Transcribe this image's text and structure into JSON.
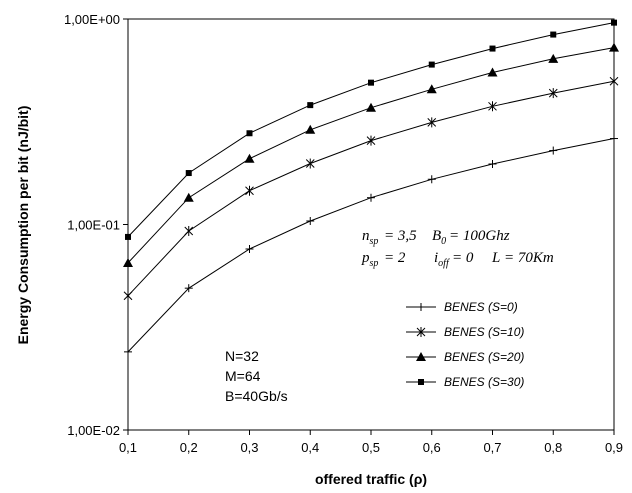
{
  "chart_data": {
    "type": "line",
    "xlabel": "offered traffic (ρ)",
    "ylabel": "Energy Consumption per bit (nJ/bit)",
    "y_scale": "log",
    "ylim": [
      0.01,
      1
    ],
    "xlim": [
      0.1,
      0.9
    ],
    "grid": false,
    "legend_position": "bottom-right",
    "x_ticks": [
      "0,1",
      "0,2",
      "0,3",
      "0,4",
      "0,5",
      "0,6",
      "0,7",
      "0,8",
      "0,9"
    ],
    "y_ticks": [
      "1,00E-02",
      "1,00E-01",
      "1,00E+00"
    ],
    "x": [
      0.1,
      0.2,
      0.3,
      0.4,
      0.5,
      0.6,
      0.7,
      0.8,
      0.9
    ],
    "series": [
      {
        "name": "BENES (S=0)",
        "marker": "plus",
        "values": [
          0.024,
          0.049,
          0.076,
          0.104,
          0.135,
          0.166,
          0.197,
          0.229,
          0.262
        ]
      },
      {
        "name": "BENES (S=10)",
        "marker": "star",
        "values": [
          0.045,
          0.093,
          0.146,
          0.198,
          0.256,
          0.314,
          0.376,
          0.436,
          0.498
        ]
      },
      {
        "name": "BENES (S=20)",
        "marker": "triangle",
        "values": [
          0.065,
          0.135,
          0.209,
          0.289,
          0.37,
          0.455,
          0.549,
          0.64,
          0.726
        ]
      },
      {
        "name": "BENES (S=30)",
        "marker": "square",
        "values": [
          0.087,
          0.178,
          0.278,
          0.381,
          0.49,
          0.6,
          0.718,
          0.84,
          0.96
        ]
      }
    ],
    "annotations": {
      "params": [
        "N=32",
        "M=64",
        "B=40Gb/s"
      ],
      "formula": {
        "nsp_value": "= 3,5",
        "b0_value": "= 100Ghz",
        "psp_value": "= 2",
        "ioff_value": "= 0",
        "l_value": "= 70Km"
      }
    }
  }
}
